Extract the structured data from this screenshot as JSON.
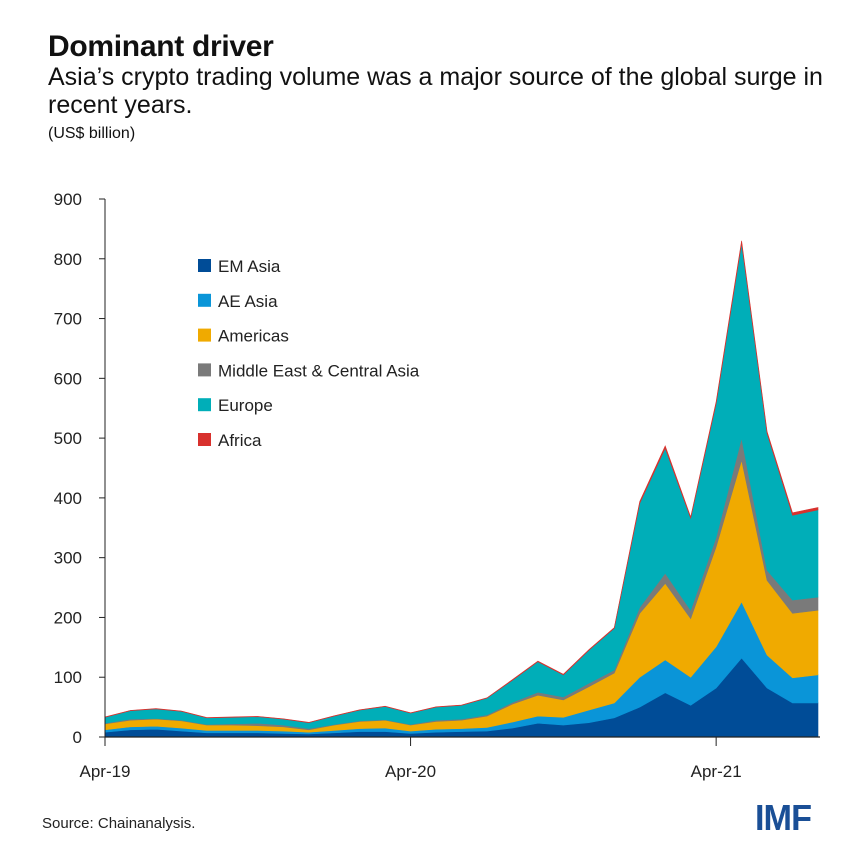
{
  "chart_data": {
    "type": "area",
    "stacked": true,
    "title": "Dominant driver",
    "subtitle": "Asia’s crypto trading volume was a major source of the global surge in recent years.",
    "unit": "(US$ billion)",
    "xlabel": "",
    "ylabel": "",
    "ylim": [
      0,
      900
    ],
    "yticks": [
      0,
      100,
      200,
      300,
      400,
      500,
      600,
      700,
      800,
      900
    ],
    "xtick_labels": [
      "Apr-19",
      "Apr-20",
      "Apr-21"
    ],
    "grid": false,
    "legend_position": "top-left",
    "x": [
      "Apr-19",
      "May-19",
      "Jun-19",
      "Jul-19",
      "Aug-19",
      "Sep-19",
      "Oct-19",
      "Nov-19",
      "Dec-19",
      "Jan-20",
      "Feb-20",
      "Mar-20",
      "Apr-20",
      "May-20",
      "Jun-20",
      "Jul-20",
      "Aug-20",
      "Sep-20",
      "Oct-20",
      "Nov-20",
      "Dec-20",
      "Jan-21",
      "Feb-21",
      "Mar-21",
      "Apr-21",
      "May-21",
      "Jun-21",
      "Jul-21",
      "Aug-21"
    ],
    "series": [
      {
        "name": "EM Asia",
        "color": "#004c97",
        "values": [
          8,
          12,
          13,
          10,
          7,
          7,
          7,
          6,
          5,
          7,
          9,
          9,
          6,
          8,
          9,
          10,
          15,
          23,
          20,
          24,
          32,
          50,
          74,
          53,
          82,
          132,
          82,
          57,
          57
        ]
      },
      {
        "name": "AE Asia",
        "color": "#0a95d8",
        "values": [
          4,
          5,
          5,
          5,
          4,
          4,
          4,
          4,
          3,
          4,
          5,
          6,
          4,
          5,
          5,
          6,
          10,
          12,
          13,
          21,
          25,
          50,
          55,
          47,
          69,
          94,
          55,
          42,
          47
        ]
      },
      {
        "name": "Americas",
        "color": "#f0aa00",
        "values": [
          10,
          11,
          12,
          12,
          9,
          9,
          8,
          7,
          4,
          9,
          12,
          13,
          10,
          13,
          14,
          19,
          30,
          35,
          29,
          39,
          50,
          107,
          128,
          98,
          167,
          237,
          125,
          108,
          108
        ]
      },
      {
        "name": "Middle East & Central Asia",
        "color": "#7a7a7a",
        "values": [
          1,
          2,
          1,
          1,
          1,
          2,
          4,
          3,
          2,
          1,
          1,
          1,
          1,
          2,
          2,
          2,
          3,
          5,
          5,
          6,
          5,
          10,
          17,
          14,
          16,
          37,
          17,
          22,
          22
        ]
      },
      {
        "name": "Europe",
        "color": "#00aeb8",
        "values": [
          10,
          14,
          16,
          15,
          11,
          11,
          11,
          10,
          10,
          14,
          18,
          22,
          19,
          22,
          23,
          28,
          37,
          51,
          37,
          55,
          70,
          174,
          209,
          154,
          224,
          326,
          229,
          142,
          146
        ]
      },
      {
        "name": "Africa",
        "color": "#d8312d",
        "values": [
          0.5,
          0.5,
          0.5,
          0.5,
          0.5,
          0.5,
          0.5,
          0.5,
          0.5,
          0.5,
          0.5,
          0.5,
          0.5,
          0.5,
          0.5,
          0.5,
          1,
          1,
          1,
          1,
          1,
          3,
          4,
          2,
          3,
          4,
          3,
          4,
          4
        ]
      }
    ],
    "source": "Source: Chainanalysis."
  },
  "logo": "IMF"
}
